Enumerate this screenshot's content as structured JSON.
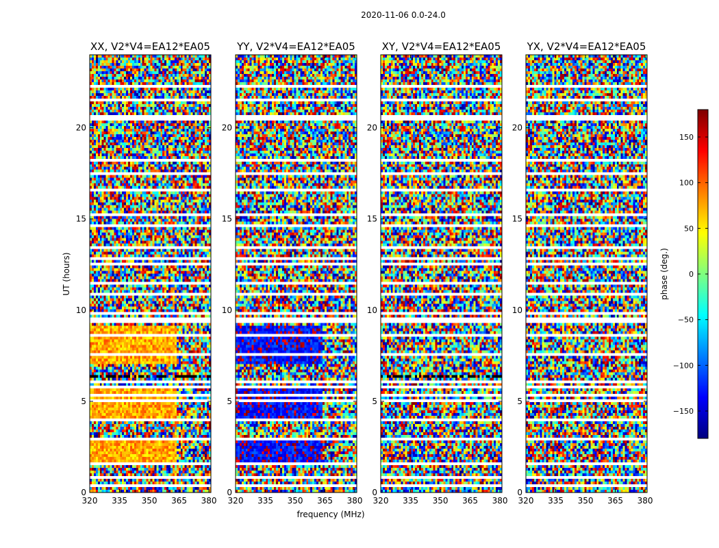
{
  "chart_data": {
    "type": "heatmap",
    "suptitle": "2020-11-06 0.0-24.0",
    "xlabel": "frequency (MHz)",
    "ylabel": "UT (hours)",
    "xlim": [
      320,
      381
    ],
    "ylim": [
      0,
      24
    ],
    "xticks": [
      320,
      335,
      350,
      365,
      380
    ],
    "yticks": [
      0,
      5,
      10,
      15,
      20
    ],
    "panels": [
      {
        "title": "XX, V2*V4=EA12*EA05",
        "bias": "XX"
      },
      {
        "title": "YY, V2*V4=EA12*EA05",
        "bias": "YY"
      },
      {
        "title": "XY, V2*V4=EA12*EA05",
        "bias": "noise"
      },
      {
        "title": "YX, V2*V4=EA12*EA05",
        "bias": "noise"
      }
    ],
    "colorbar": {
      "label": "phase (deg.)",
      "min": -180,
      "max": 180,
      "ticks": [
        150,
        100,
        50,
        0,
        -50,
        -100,
        -150
      ],
      "colormap": "jet"
    },
    "flagged_ut_bands": [
      [
        0.35,
        0.45
      ],
      [
        0.75,
        0.85
      ],
      [
        1.05,
        1.1
      ],
      [
        1.45,
        1.6
      ],
      [
        1.95,
        2.0
      ],
      [
        2.85,
        3.0
      ],
      [
        3.4,
        3.5
      ],
      [
        3.95,
        4.05
      ],
      [
        4.45,
        4.55
      ],
      [
        4.95,
        5.05
      ],
      [
        5.25,
        5.35
      ],
      [
        5.7,
        5.85
      ],
      [
        5.95,
        6.1
      ],
      [
        7.0,
        7.1
      ],
      [
        7.5,
        7.6
      ],
      [
        8.05,
        8.15
      ],
      [
        8.55,
        8.65
      ],
      [
        9.25,
        9.55
      ],
      [
        9.75,
        9.85
      ],
      [
        10.3,
        10.35
      ],
      [
        10.85,
        10.95
      ],
      [
        11.4,
        11.5
      ],
      [
        12.4,
        12.6
      ],
      [
        12.75,
        12.9
      ],
      [
        13.4,
        13.5
      ],
      [
        14.05,
        14.15
      ],
      [
        14.6,
        14.7
      ],
      [
        15.2,
        15.3
      ],
      [
        15.6,
        15.65
      ],
      [
        16.5,
        16.6
      ],
      [
        17.4,
        17.5
      ],
      [
        18.2,
        18.3
      ],
      [
        18.7,
        18.8
      ],
      [
        19.3,
        19.4
      ],
      [
        20.45,
        20.7
      ],
      [
        21.45,
        21.55
      ],
      [
        22.2,
        22.3
      ],
      [
        22.45,
        22.55
      ]
    ]
  }
}
